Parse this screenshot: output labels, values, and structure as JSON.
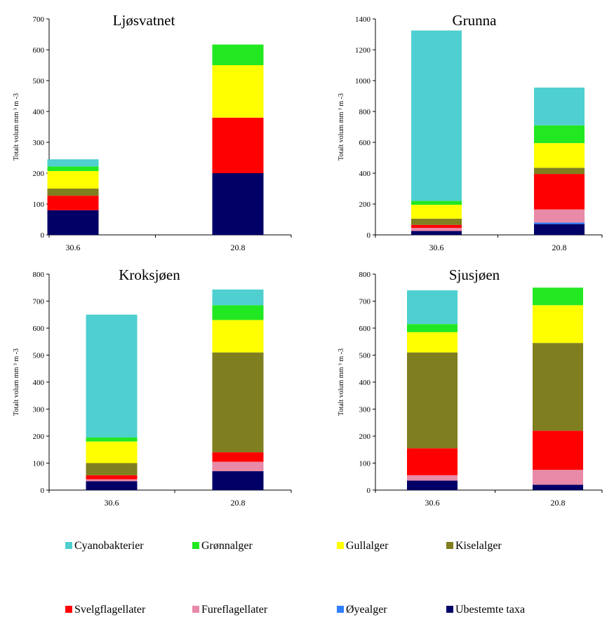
{
  "colors": {
    "Cyanobakterier": "#4fcfcf",
    "Grønnalger": "#22e822",
    "Gullalger": "#ffff00",
    "Kiselalger": "#7f7f1f",
    "Svelgflagellater": "#ff0000",
    "Fureflagellater": "#e88aa8",
    "Øyealger": "#2f7fff",
    "Ubestemte taxa": "#000066"
  },
  "legend": {
    "items": [
      "Cyanobakterier",
      "Grønnalger",
      "Gullalger",
      "Kiselalger",
      "Svelgflagellater",
      "Fureflagellater",
      "Øyealger",
      "Ubestemte taxa"
    ]
  },
  "chart_data": [
    {
      "type": "bar",
      "stacked": true,
      "title": "Ljøsvatnet",
      "ylabel": "Totalt volum mm ³ m -3",
      "ylim": [
        0,
        700
      ],
      "yticks": [
        0,
        100,
        200,
        300,
        400,
        500,
        600,
        700
      ],
      "categories": [
        "30.6",
        "20.8"
      ],
      "series": [
        {
          "name": "Ubestemte taxa",
          "values": [
            80,
            200
          ]
        },
        {
          "name": "Øyealger",
          "values": [
            0,
            0
          ]
        },
        {
          "name": "Fureflagellater",
          "values": [
            0,
            0
          ]
        },
        {
          "name": "Svelgflagellater",
          "values": [
            47,
            180
          ]
        },
        {
          "name": "Kiselalger",
          "values": [
            23,
            0
          ]
        },
        {
          "name": "Gullalger",
          "values": [
            57,
            170
          ]
        },
        {
          "name": "Grønnalger",
          "values": [
            15,
            67
          ]
        },
        {
          "name": "Cyanobakterier",
          "values": [
            23,
            0
          ]
        }
      ]
    },
    {
      "type": "bar",
      "stacked": true,
      "title": "Grunna",
      "ylabel": "Totalt volum mm ³ m -3",
      "ylim": [
        0,
        1400
      ],
      "yticks": [
        0,
        200,
        400,
        600,
        800,
        1000,
        1200,
        1400
      ],
      "categories": [
        "30.6",
        "20.8"
      ],
      "series": [
        {
          "name": "Ubestemte taxa",
          "values": [
            25,
            70
          ]
        },
        {
          "name": "Øyealger",
          "values": [
            0,
            10
          ]
        },
        {
          "name": "Fureflagellater",
          "values": [
            20,
            85
          ]
        },
        {
          "name": "Svelgflagellater",
          "values": [
            20,
            230
          ]
        },
        {
          "name": "Kiselalger",
          "values": [
            40,
            40
          ]
        },
        {
          "name": "Gullalger",
          "values": [
            90,
            160
          ]
        },
        {
          "name": "Grønnalger",
          "values": [
            25,
            115
          ]
        },
        {
          "name": "Cyanobakterier",
          "values": [
            1105,
            245
          ]
        }
      ]
    },
    {
      "type": "bar",
      "stacked": true,
      "title": "Kroksjøen",
      "ylabel": "Totalt volum mm ³ m -3",
      "ylim": [
        0,
        800
      ],
      "yticks": [
        0,
        100,
        200,
        300,
        400,
        500,
        600,
        700,
        800
      ],
      "categories": [
        "30.6",
        "20.8"
      ],
      "series": [
        {
          "name": "Ubestemte taxa",
          "values": [
            33,
            70
          ]
        },
        {
          "name": "Øyealger",
          "values": [
            0,
            0
          ]
        },
        {
          "name": "Fureflagellater",
          "values": [
            7,
            35
          ]
        },
        {
          "name": "Svelgflagellater",
          "values": [
            15,
            35
          ]
        },
        {
          "name": "Kiselalger",
          "values": [
            45,
            370
          ]
        },
        {
          "name": "Gullalger",
          "values": [
            80,
            120
          ]
        },
        {
          "name": "Grønnalger",
          "values": [
            15,
            55
          ]
        },
        {
          "name": "Cyanobakterier",
          "values": [
            455,
            58
          ]
        }
      ]
    },
    {
      "type": "bar",
      "stacked": true,
      "title": "Sjusjøen",
      "ylabel": "Totalt volum mm ³ m -3",
      "ylim": [
        0,
        800
      ],
      "yticks": [
        0,
        100,
        200,
        300,
        400,
        500,
        600,
        700,
        800
      ],
      "categories": [
        "30.6",
        "20.8"
      ],
      "series": [
        {
          "name": "Ubestemte taxa",
          "values": [
            35,
            20
          ]
        },
        {
          "name": "Øyealger",
          "values": [
            0,
            0
          ]
        },
        {
          "name": "Fureflagellater",
          "values": [
            20,
            55
          ]
        },
        {
          "name": "Svelgflagellater",
          "values": [
            100,
            145
          ]
        },
        {
          "name": "Kiselalger",
          "values": [
            355,
            325
          ]
        },
        {
          "name": "Gullalger",
          "values": [
            75,
            140
          ]
        },
        {
          "name": "Grønnalger",
          "values": [
            30,
            65
          ]
        },
        {
          "name": "Cyanobakterier",
          "values": [
            125,
            0
          ]
        }
      ]
    }
  ]
}
